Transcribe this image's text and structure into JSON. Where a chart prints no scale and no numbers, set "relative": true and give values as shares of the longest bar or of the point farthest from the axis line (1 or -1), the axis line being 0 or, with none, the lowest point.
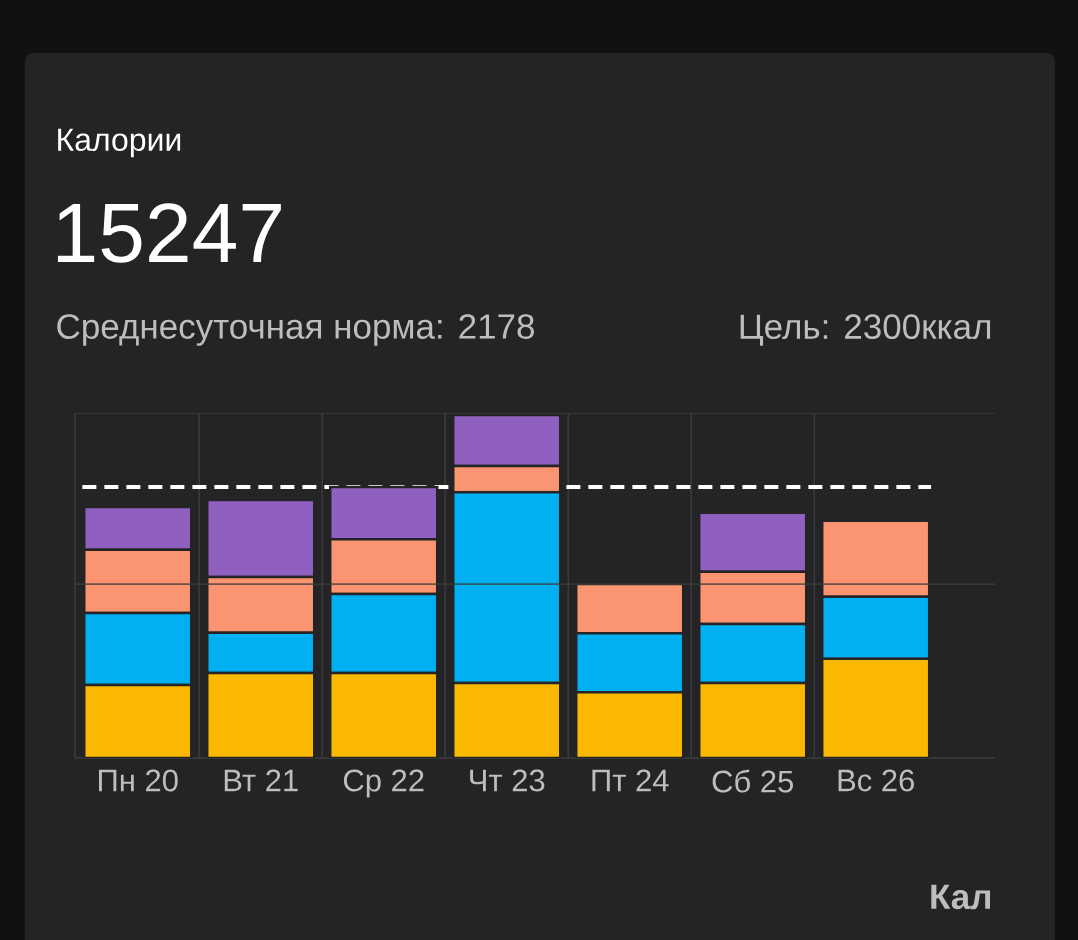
{
  "chart_data": {
    "type": "bar",
    "stacked": true,
    "relative": true,
    "title": "Калории",
    "subtitle": "15247",
    "annotations": [
      "Среднесуточная норма: 2178",
      "Цель: 2300ккал",
      "Кал"
    ],
    "categories": [
      "Пн 20",
      "Вт 21",
      "Ср 22",
      "Чт 23",
      "Пт 24",
      "Сб 25",
      "Вс 26"
    ],
    "series": [
      {
        "color": "#fbb800",
        "values": [
          0.213,
          0.248,
          0.248,
          0.219,
          0.192,
          0.219,
          0.289
        ]
      },
      {
        "color": "#00b0f0",
        "values": [
          0.21,
          0.117,
          0.23,
          0.556,
          0.172,
          0.172,
          0.181
        ]
      },
      {
        "color": "#fb9470",
        "values": [
          0.184,
          0.163,
          0.16,
          0.076,
          0.143,
          0.152,
          0.222
        ]
      },
      {
        "color": "#9060c0",
        "values": [
          0.125,
          0.224,
          0.152,
          0.149,
          null,
          0.172,
          null
        ]
      }
    ],
    "ref_lines": [
      {
        "axis": "y",
        "value": 0.79,
        "color": "#ffffff",
        "line_style": "dashed"
      }
    ],
    "grid": true
  }
}
